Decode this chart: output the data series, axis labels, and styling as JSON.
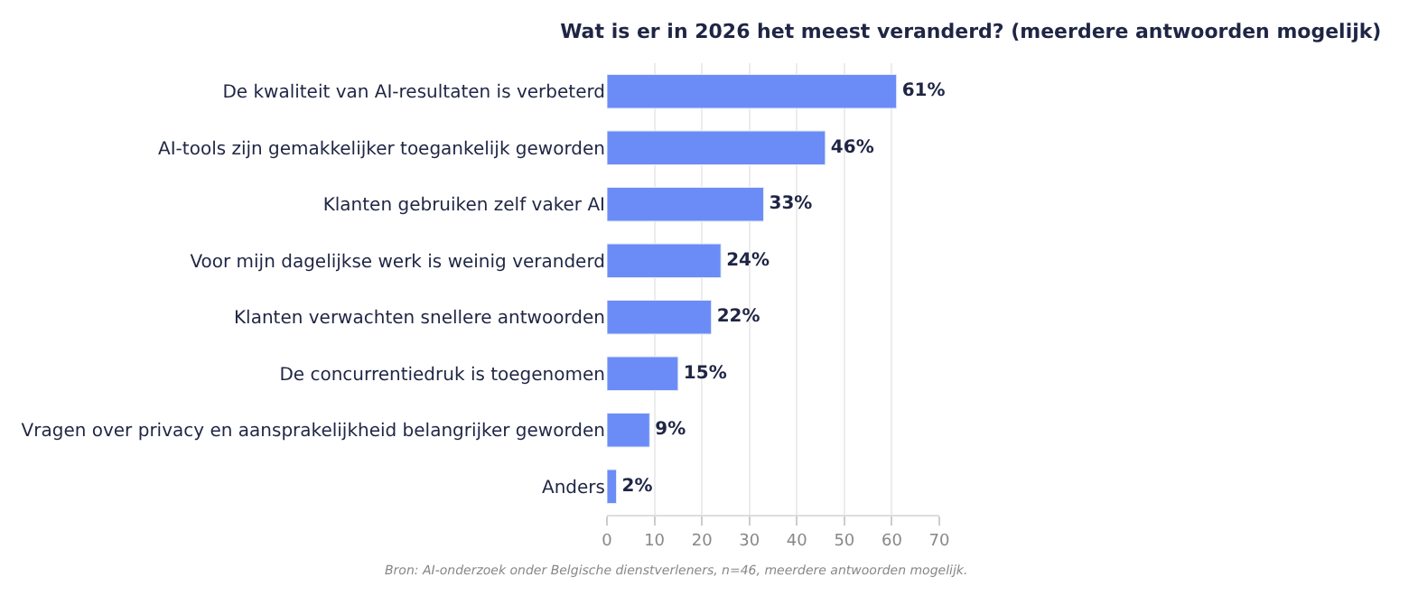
{
  "chart_data": {
    "type": "bar",
    "orientation": "horizontal",
    "title": "Wat is er in 2026 het meest veranderd? (meerdere antwoorden mogelijk)",
    "categories": [
      "De kwaliteit van AI-resultaten is verbeterd",
      "AI-tools zijn gemakkelijker toegankelijk geworden",
      "Klanten gebruiken zelf vaker AI",
      "Voor mijn dagelijkse werk is weinig veranderd",
      "Klanten verwachten snellere antwoorden",
      "De concurrentiedruk is toegenomen",
      "Vragen over privacy en aansprakelijkheid belangrijker geworden",
      "Anders"
    ],
    "values": [
      61,
      46,
      33,
      24,
      22,
      15,
      9,
      2
    ],
    "value_labels": [
      "61%",
      "46%",
      "33%",
      "24%",
      "22%",
      "15%",
      "9%",
      "2%"
    ],
    "color": "#6b8cf7",
    "xlim": [
      0,
      70
    ],
    "xticks": [
      0,
      10,
      20,
      30,
      40,
      50,
      60,
      70
    ],
    "grid": "x",
    "legend": false,
    "annotations": [
      "Bron: AI-onderzoek onder Belgische dienstverleners, n=46, meerdere antwoorden mogelijk."
    ]
  }
}
